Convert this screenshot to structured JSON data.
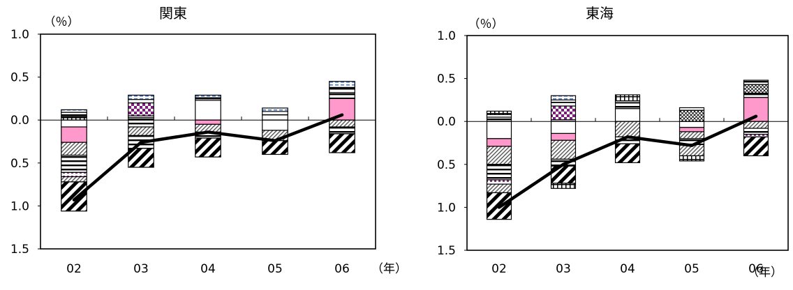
{
  "chart_data": [
    {
      "type": "bar",
      "stacked": true,
      "title": "関東",
      "ylabel": "（％）",
      "xlabel": "（年）",
      "categories": [
        "02",
        "03",
        "04",
        "05",
        "06"
      ],
      "ylim": [
        -1.5,
        1.0
      ],
      "yticks": [
        1.0,
        0.5,
        0.0,
        -0.5,
        -1.0,
        -1.5
      ],
      "ytick_labels": [
        "1.0",
        "0.5",
        "0.0",
        "0.5",
        "1.0",
        "1.5"
      ],
      "segment_patterns": [
        "diag",
        "dots",
        "purple-dot",
        "hlines",
        "plain",
        "pink",
        "grid",
        "purple-check",
        "blue-dash"
      ],
      "positive_stacks": [
        [
          [
            "grid",
            0.04
          ],
          [
            "hlines",
            0.05
          ],
          [
            "blue-dash",
            0.03
          ]
        ],
        [
          [
            "hlines",
            0.03
          ],
          [
            "plain",
            0.02
          ],
          [
            "purple-check",
            0.15
          ],
          [
            "plain",
            0.04
          ],
          [
            "blue-dash",
            0.05
          ]
        ],
        [
          [
            "plain",
            0.23
          ],
          [
            "hlines",
            0.03
          ],
          [
            "blue-dash",
            0.03
          ]
        ],
        [
          [
            "plain",
            0.06
          ],
          [
            "hlines",
            0.04
          ],
          [
            "blue-dash",
            0.04
          ]
        ],
        [
          [
            "pink",
            0.25
          ],
          [
            "hlines",
            0.07
          ],
          [
            "plain",
            0.04
          ],
          [
            "grid",
            0.02
          ],
          [
            "blue-dash",
            0.07
          ]
        ]
      ],
      "negative_stacks": [
        [
          [
            "plain",
            0.08
          ],
          [
            "pink",
            0.18
          ],
          [
            "dots",
            0.15
          ],
          [
            "hlines",
            0.2
          ],
          [
            "purple-dot",
            0.05
          ],
          [
            "dots",
            0.06
          ],
          [
            "diag",
            0.34
          ]
        ],
        [
          [
            "hlines",
            0.08
          ],
          [
            "dots",
            0.1
          ],
          [
            "hlines",
            0.15
          ],
          [
            "diag",
            0.22
          ]
        ],
        [
          [
            "pink",
            0.05
          ],
          [
            "dots",
            0.09
          ],
          [
            "hlines",
            0.07
          ],
          [
            "diag",
            0.22
          ]
        ],
        [
          [
            "plain",
            0.12
          ],
          [
            "dots",
            0.12
          ],
          [
            "diag",
            0.16
          ]
        ],
        [
          [
            "dots",
            0.08
          ],
          [
            "hlines",
            0.08
          ],
          [
            "diag",
            0.22
          ]
        ]
      ],
      "series": [
        {
          "type": "line",
          "values": [
            -0.93,
            -0.26,
            -0.14,
            -0.24,
            0.06
          ]
        }
      ]
    },
    {
      "type": "bar",
      "stacked": true,
      "title": "東海",
      "ylabel": "（％）",
      "xlabel": "（年）",
      "categories": [
        "02",
        "03",
        "04",
        "05",
        "06"
      ],
      "ylim": [
        -1.5,
        1.0
      ],
      "yticks": [
        1.0,
        0.5,
        0.0,
        -0.5,
        -1.0,
        -1.5
      ],
      "ytick_labels": [
        "1.0",
        "0.5",
        "0.0",
        "0.5",
        "1.0",
        "1.5"
      ],
      "segment_patterns": [
        "diag",
        "dots",
        "purple-dot",
        "hlines",
        "plain",
        "pink",
        "grid",
        "purple-check",
        "blue-dash",
        "crosshatch"
      ],
      "positive_stacks": [
        [
          [
            "hlines",
            0.05
          ],
          [
            "plain",
            0.03
          ],
          [
            "grid",
            0.04
          ]
        ],
        [
          [
            "hlines",
            0.02
          ],
          [
            "purple-check",
            0.16
          ],
          [
            "plain",
            0.04
          ],
          [
            "hlines",
            0.03
          ],
          [
            "blue-dash",
            0.05
          ]
        ],
        [
          [
            "plain",
            0.15
          ],
          [
            "hlines",
            0.07
          ],
          [
            "plain",
            0.02
          ],
          [
            "grid",
            0.07
          ]
        ],
        [
          [
            "crosshatch",
            0.13
          ],
          [
            "hlines",
            0.03
          ]
        ],
        [
          [
            "pink",
            0.28
          ],
          [
            "hlines",
            0.05
          ],
          [
            "crosshatch",
            0.1
          ],
          [
            "hlines",
            0.05
          ]
        ]
      ],
      "negative_stacks": [
        [
          [
            "plain",
            0.2
          ],
          [
            "pink",
            0.09
          ],
          [
            "dots",
            0.21
          ],
          [
            "hlines",
            0.18
          ],
          [
            "purple-dot",
            0.05
          ],
          [
            "dots",
            0.1
          ],
          [
            "diag",
            0.31
          ]
        ],
        [
          [
            "plain",
            0.14
          ],
          [
            "pink",
            0.08
          ],
          [
            "dots",
            0.22
          ],
          [
            "hlines",
            0.08
          ],
          [
            "diag",
            0.2
          ],
          [
            "grid",
            0.06
          ]
        ],
        [
          [
            "dots",
            0.18
          ],
          [
            "hlines",
            0.08
          ],
          [
            "diag",
            0.22
          ]
        ],
        [
          [
            "plain",
            0.07
          ],
          [
            "pink",
            0.05
          ],
          [
            "dots",
            0.08
          ],
          [
            "hlines",
            0.07
          ],
          [
            "dots",
            0.13
          ],
          [
            "grid",
            0.06
          ]
        ],
        [
          [
            "dots",
            0.08
          ],
          [
            "hlines",
            0.07
          ],
          [
            "purple-dot",
            0.03
          ],
          [
            "diag",
            0.22
          ]
        ]
      ],
      "series": [
        {
          "type": "line",
          "values": [
            -1.0,
            -0.5,
            -0.18,
            -0.28,
            0.06
          ]
        }
      ]
    }
  ]
}
